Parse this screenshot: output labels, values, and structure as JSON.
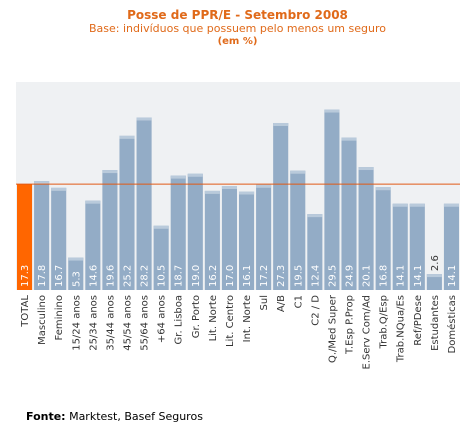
{
  "source": {
    "label": "Fonte:",
    "text": "Marktest, Basef Seguros"
  },
  "chart_data": {
    "type": "bar",
    "title": "Posse de PPR/E - Setembro 2008",
    "subtitle": "Base: indivíduos que possuem pelo menos um seguro",
    "unit": "(em %)",
    "categories": [
      "TOTAL",
      "Masculino",
      "Feminino",
      "15/24 anos",
      "25/34 anos",
      "35/44 anos",
      "45/54 anos",
      "55/64 anos",
      "+64 anos",
      "Gr. Lisboa",
      "Gr. Porto",
      "Lit. Norte",
      "Lit. Centro",
      "Int. Norte",
      "Sul",
      "A/B",
      "C1",
      "C2 / D",
      "Q./Med Super",
      "T.Esp P.Prop",
      "E.Serv Com/Ad",
      "Trab.Q/Esp",
      "Trab.NQua/Es",
      "Ref/PDese",
      "Estudantes",
      "Domésticas"
    ],
    "values": [
      17.3,
      17.8,
      16.7,
      5.3,
      14.6,
      19.6,
      25.2,
      28.2,
      10.5,
      18.7,
      19.0,
      16.2,
      17.0,
      16.1,
      17.2,
      27.3,
      19.5,
      12.4,
      29.5,
      24.9,
      20.1,
      16.8,
      14.1,
      14.1,
      2.6,
      14.1
    ],
    "value_labels": [
      "17.3",
      "17.8",
      "16.7",
      "5.3",
      "14.6",
      "19.6",
      "25.2",
      "28.2",
      "10.5",
      "18.7",
      "19.0",
      "16.2",
      "17.0",
      "16.1",
      "17.2",
      "27.3",
      "19.5",
      "12.4",
      "29.5",
      "24.9",
      "20.1",
      "16.8",
      "14.1",
      "14.1",
      "2.6",
      "14.1"
    ],
    "highlight_index": 0,
    "reference_line": 17.3,
    "ylim": [
      0,
      34
    ],
    "grid": false,
    "colors": {
      "bar": "#93acc6",
      "bar_highlight": "#ff6600",
      "reference_line": "#e05a14",
      "plot_background": "#eff1f3",
      "title": "#e06a1a"
    }
  }
}
